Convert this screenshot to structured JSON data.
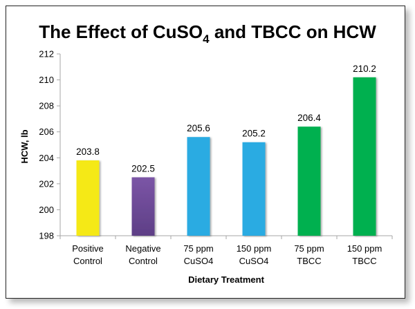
{
  "chart_data": {
    "type": "bar",
    "title": "The Effect of CuSO",
    "title_subscript": "4",
    "title_suffix": " and TBCC on HCW",
    "xlabel": "Dietary Treatment",
    "ylabel": "HCW, lb",
    "ylim": [
      198,
      212
    ],
    "yticks": [
      198,
      200,
      202,
      204,
      206,
      208,
      210,
      212
    ],
    "grid": false,
    "legend": "none",
    "categories": [
      [
        "Positive",
        "Control"
      ],
      [
        "Negative",
        "Control"
      ],
      [
        "75 ppm",
        "CuSO4"
      ],
      [
        "150 ppm",
        "CuSO4"
      ],
      [
        "75 ppm",
        "TBCC"
      ],
      [
        "150 ppm",
        "TBCC"
      ]
    ],
    "values": [
      203.8,
      202.5,
      205.6,
      205.2,
      206.4,
      210.2
    ],
    "data_labels": [
      "203.8",
      "202.5",
      "205.6",
      "205.2",
      "206.4",
      "210.2"
    ],
    "colors": [
      "#f5e912",
      "#6a4a94",
      "#29abe2",
      "#29abe2",
      "#00b050",
      "#00b050"
    ]
  }
}
